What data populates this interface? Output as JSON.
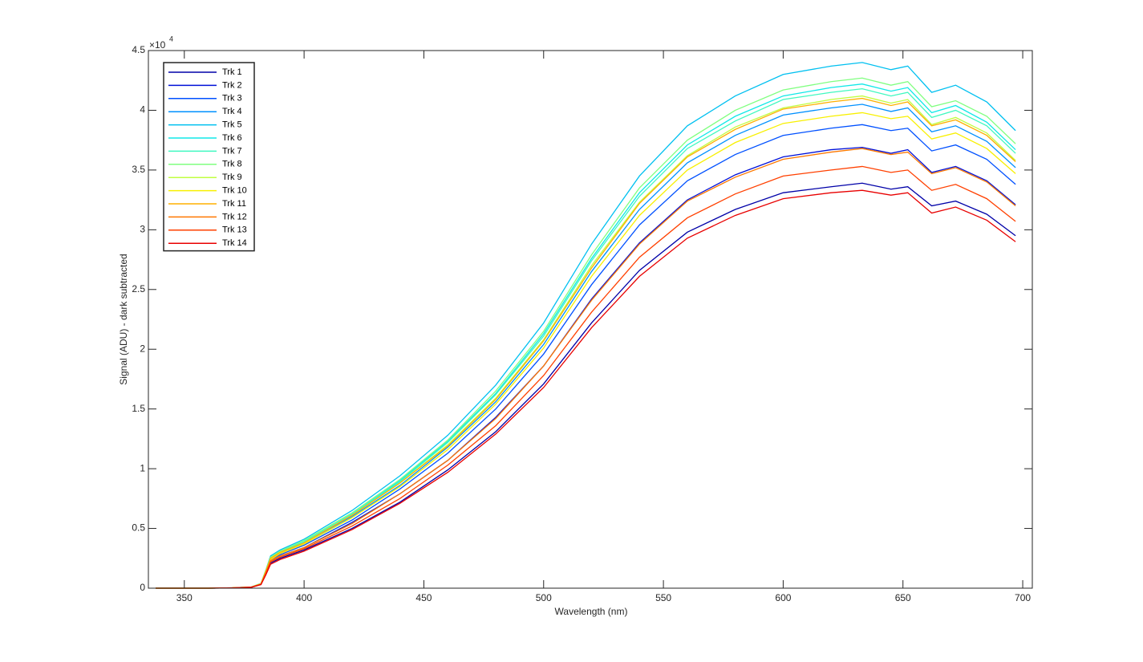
{
  "chart_data": {
    "type": "line",
    "x_label": "Wavelength (nm)",
    "y_label": "Signal (ADU) - dark subtracted",
    "y_multiplier": {
      "base": "×10",
      "exponent": "4"
    },
    "x": [
      338,
      350,
      360,
      370,
      378,
      382,
      384,
      386,
      390,
      400,
      420,
      440,
      460,
      480,
      500,
      520,
      540,
      560,
      580,
      600,
      620,
      633,
      645,
      652,
      662,
      672,
      685,
      697
    ],
    "xlim": [
      335,
      704
    ],
    "xticks": [
      350,
      400,
      450,
      500,
      550,
      600,
      650,
      700
    ],
    "ylim": [
      0,
      4.5
    ],
    "yticks": [
      0,
      0.5,
      1,
      1.5,
      2,
      2.5,
      3,
      3.5,
      4,
      4.5
    ],
    "grid": false,
    "legend_position": "upper-left",
    "series": [
      {
        "name": "Trk 1",
        "color": "#0000a8",
        "values": [
          0,
          0,
          0,
          0.002,
          0.008,
          0.031,
          0.12,
          0.21,
          0.25,
          0.32,
          0.5,
          0.72,
          0.99,
          1.31,
          1.71,
          2.22,
          2.66,
          2.98,
          3.17,
          3.31,
          3.36,
          3.39,
          3.34,
          3.36,
          3.2,
          3.24,
          3.13,
          2.95
        ]
      },
      {
        "name": "Trk 2",
        "color": "#0010d8",
        "values": [
          0,
          0,
          0,
          0.003,
          0.008,
          0.034,
          0.13,
          0.23,
          0.27,
          0.34,
          0.55,
          0.79,
          1.07,
          1.43,
          1.86,
          2.42,
          2.89,
          3.25,
          3.46,
          3.61,
          3.67,
          3.69,
          3.64,
          3.67,
          3.48,
          3.53,
          3.41,
          3.21
        ]
      },
      {
        "name": "Trk 3",
        "color": "#0050ff",
        "values": [
          0,
          0,
          0,
          0.003,
          0.009,
          0.035,
          0.13,
          0.24,
          0.28,
          0.36,
          0.57,
          0.83,
          1.13,
          1.5,
          1.96,
          2.54,
          3.04,
          3.41,
          3.63,
          3.79,
          3.85,
          3.88,
          3.83,
          3.85,
          3.66,
          3.71,
          3.59,
          3.38
        ]
      },
      {
        "name": "Trk 4",
        "color": "#0090ff",
        "values": [
          0,
          0,
          0,
          0.003,
          0.009,
          0.037,
          0.14,
          0.25,
          0.29,
          0.38,
          0.6,
          0.86,
          1.18,
          1.56,
          2.04,
          2.65,
          3.17,
          3.56,
          3.79,
          3.96,
          4.02,
          4.05,
          3.99,
          4.02,
          3.82,
          3.87,
          3.74,
          3.52
        ]
      },
      {
        "name": "Trk 5",
        "color": "#00c0f0",
        "values": [
          0,
          0,
          0,
          0.003,
          0.01,
          0.04,
          0.15,
          0.27,
          0.32,
          0.41,
          0.65,
          0.94,
          1.28,
          1.7,
          2.22,
          2.88,
          3.45,
          3.87,
          4.12,
          4.3,
          4.37,
          4.4,
          4.34,
          4.37,
          4.15,
          4.21,
          4.07,
          3.83
        ]
      },
      {
        "name": "Trk 6",
        "color": "#10e8e8",
        "values": [
          0,
          0,
          0,
          0.003,
          0.01,
          0.038,
          0.14,
          0.26,
          0.31,
          0.39,
          0.62,
          0.9,
          1.23,
          1.63,
          2.13,
          2.76,
          3.31,
          3.71,
          3.95,
          4.12,
          4.19,
          4.22,
          4.16,
          4.19,
          3.98,
          4.04,
          3.9,
          3.67
        ]
      },
      {
        "name": "Trk 7",
        "color": "#40f8c0",
        "values": [
          0,
          0,
          0,
          0.003,
          0.01,
          0.038,
          0.14,
          0.26,
          0.3,
          0.39,
          0.62,
          0.89,
          1.22,
          1.62,
          2.11,
          2.74,
          3.28,
          3.68,
          3.91,
          4.09,
          4.15,
          4.18,
          4.12,
          4.15,
          3.94,
          4.0,
          3.87,
          3.64
        ]
      },
      {
        "name": "Trk 8",
        "color": "#80ff80",
        "values": [
          0,
          0,
          0,
          0.003,
          0.01,
          0.039,
          0.15,
          0.26,
          0.31,
          0.4,
          0.63,
          0.91,
          1.24,
          1.65,
          2.15,
          2.79,
          3.35,
          3.75,
          4.0,
          4.17,
          4.24,
          4.27,
          4.21,
          4.24,
          4.03,
          4.08,
          3.95,
          3.72
        ]
      },
      {
        "name": "Trk 9",
        "color": "#c0ff40",
        "values": [
          0,
          0,
          0,
          0.003,
          0.009,
          0.037,
          0.14,
          0.25,
          0.3,
          0.38,
          0.61,
          0.88,
          1.2,
          1.59,
          2.08,
          2.7,
          3.23,
          3.62,
          3.86,
          4.02,
          4.09,
          4.12,
          4.06,
          4.09,
          3.88,
          3.94,
          3.81,
          3.58
        ]
      },
      {
        "name": "Trk 10",
        "color": "#f8f000",
        "values": [
          0,
          0,
          0,
          0.003,
          0.009,
          0.036,
          0.14,
          0.24,
          0.29,
          0.37,
          0.59,
          0.85,
          1.16,
          1.54,
          2.01,
          2.61,
          3.12,
          3.5,
          3.73,
          3.89,
          3.95,
          3.98,
          3.93,
          3.95,
          3.76,
          3.81,
          3.68,
          3.47
        ]
      },
      {
        "name": "Trk 11",
        "color": "#ffb000",
        "values": [
          0,
          0,
          0,
          0.003,
          0.009,
          0.037,
          0.14,
          0.25,
          0.3,
          0.38,
          0.61,
          0.88,
          1.19,
          1.58,
          2.07,
          2.68,
          3.22,
          3.61,
          3.84,
          4.01,
          4.07,
          4.1,
          4.04,
          4.07,
          3.87,
          3.92,
          3.79,
          3.57
        ]
      },
      {
        "name": "Trk 12",
        "color": "#ff7800",
        "values": [
          0,
          0,
          0,
          0.003,
          0.008,
          0.033,
          0.13,
          0.23,
          0.27,
          0.34,
          0.54,
          0.79,
          1.07,
          1.42,
          1.86,
          2.41,
          2.88,
          3.24,
          3.44,
          3.59,
          3.65,
          3.68,
          3.63,
          3.65,
          3.47,
          3.52,
          3.4,
          3.2
        ]
      },
      {
        "name": "Trk 13",
        "color": "#ff4000",
        "values": [
          0,
          0,
          0,
          0.002,
          0.008,
          0.032,
          0.12,
          0.22,
          0.26,
          0.33,
          0.52,
          0.75,
          1.03,
          1.36,
          1.78,
          2.31,
          2.77,
          3.1,
          3.3,
          3.45,
          3.5,
          3.53,
          3.48,
          3.5,
          3.33,
          3.38,
          3.26,
          3.07
        ]
      },
      {
        "name": "Trk 14",
        "color": "#e80000",
        "values": [
          0,
          0,
          0,
          0.002,
          0.008,
          0.03,
          0.11,
          0.2,
          0.24,
          0.31,
          0.49,
          0.71,
          0.97,
          1.29,
          1.68,
          2.18,
          2.61,
          2.93,
          3.12,
          3.26,
          3.31,
          3.33,
          3.29,
          3.31,
          3.14,
          3.19,
          3.08,
          2.9
        ]
      }
    ]
  }
}
